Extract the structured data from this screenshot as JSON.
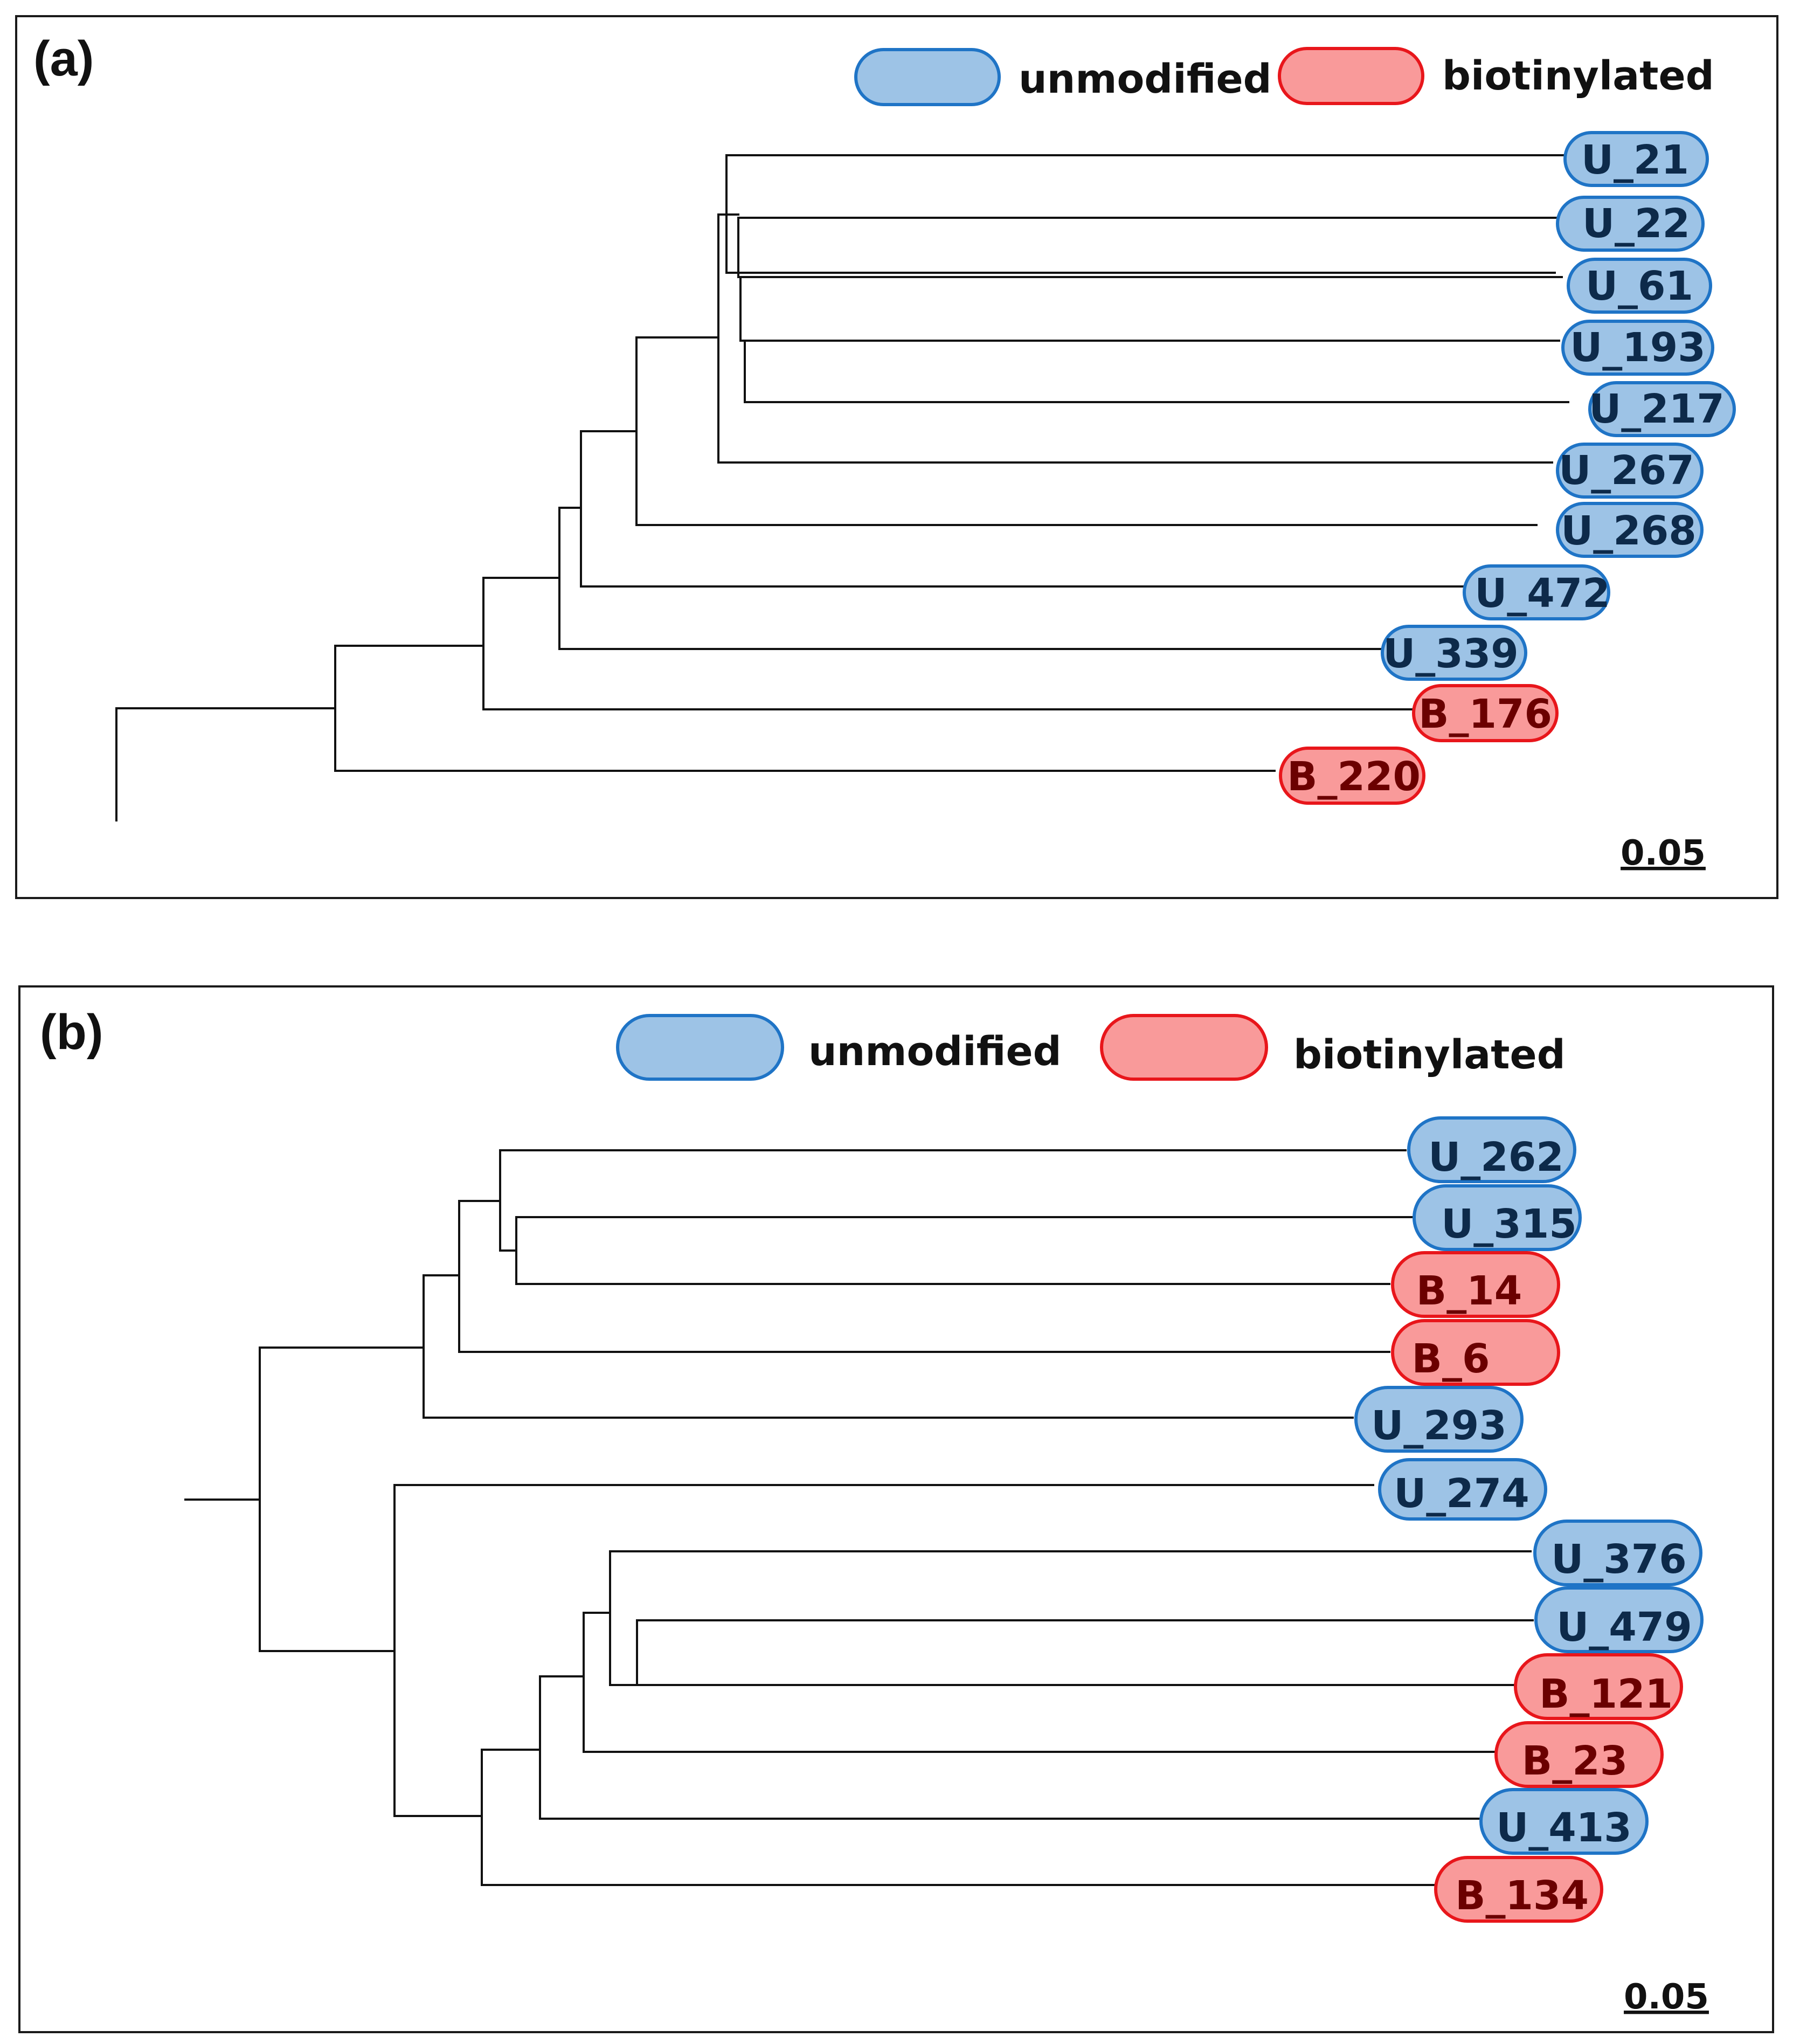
{
  "colors": {
    "unmodified_fill": "#9dc3e6",
    "unmodified_stroke": "#1f74c6",
    "unmodified_text": "#0d2a4a",
    "biotinylated_fill": "#f99a9a",
    "biotinylated_stroke": "#e8161b",
    "biotinylated_text": "#6b0000"
  },
  "panel_a": {
    "label": "(a)",
    "legend": {
      "unmodified": "unmodified",
      "biotinylated": "biotinylated"
    },
    "scale_bar": "0.05",
    "leaves": [
      {
        "name": "U_21",
        "group": "unmodified"
      },
      {
        "name": "U_22",
        "group": "unmodified"
      },
      {
        "name": "U_61",
        "group": "unmodified"
      },
      {
        "name": "U_193",
        "group": "unmodified"
      },
      {
        "name": "U_217",
        "group": "unmodified"
      },
      {
        "name": "U_267",
        "group": "unmodified"
      },
      {
        "name": "U_268",
        "group": "unmodified"
      },
      {
        "name": "U_472",
        "group": "unmodified"
      },
      {
        "name": "U_339",
        "group": "unmodified"
      },
      {
        "name": "B_176",
        "group": "biotinylated"
      },
      {
        "name": "B_220",
        "group": "biotinylated"
      }
    ]
  },
  "panel_b": {
    "label": "(b)",
    "legend": {
      "unmodified": "unmodified",
      "biotinylated": "biotinylated"
    },
    "scale_bar": "0.05",
    "leaves": [
      {
        "name": "U_262",
        "group": "unmodified"
      },
      {
        "name": "U_315",
        "group": "unmodified"
      },
      {
        "name": "B_14",
        "group": "biotinylated"
      },
      {
        "name": "B_6",
        "group": "biotinylated"
      },
      {
        "name": "U_293",
        "group": "unmodified"
      },
      {
        "name": "U_274",
        "group": "unmodified"
      },
      {
        "name": "U_376",
        "group": "unmodified"
      },
      {
        "name": "U_479",
        "group": "unmodified"
      },
      {
        "name": "B_121",
        "group": "biotinylated"
      },
      {
        "name": "B_23",
        "group": "biotinylated"
      },
      {
        "name": "U_413",
        "group": "unmodified"
      },
      {
        "name": "B_134",
        "group": "biotinylated"
      }
    ]
  }
}
